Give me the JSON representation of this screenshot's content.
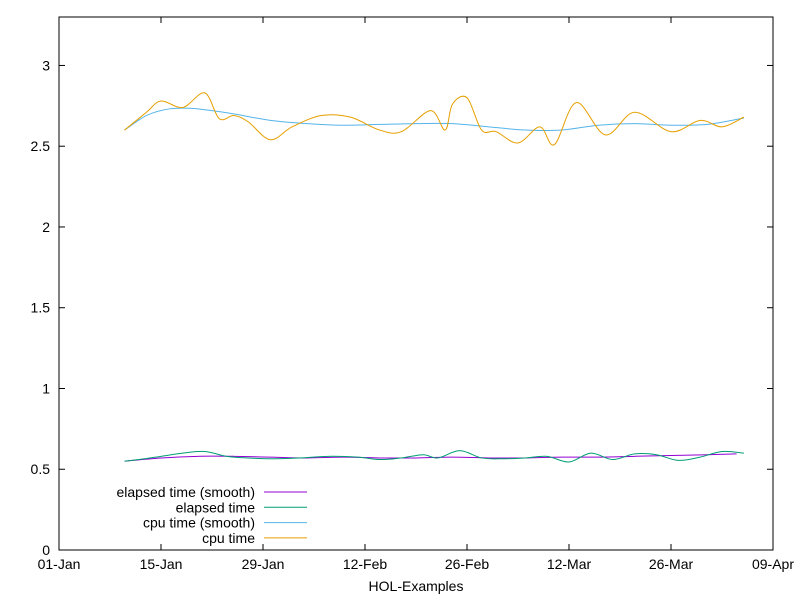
{
  "chart_data": {
    "type": "line",
    "title": "",
    "xlabel": "HOL-Examples",
    "ylabel": "",
    "xlim": [
      "2023-01-01",
      "2023-04-09"
    ],
    "ylim": [
      0,
      3.3
    ],
    "x_ticks": [
      "01-Jan",
      "15-Jan",
      "29-Jan",
      "12-Feb",
      "26-Feb",
      "12-Mar",
      "26-Mar",
      "09-Apr"
    ],
    "y_ticks": [
      "0",
      "0.5",
      "1",
      "1.5",
      "2",
      "2.5",
      "3"
    ],
    "y_tick_values": [
      0,
      0.5,
      1,
      1.5,
      2,
      2.5,
      3
    ],
    "grid": false,
    "legend_position": "bottom-left",
    "series": [
      {
        "name": "elapsed time (smooth)",
        "color": "#9400d3",
        "x": [
          "2023-01-10",
          "2023-01-15",
          "2023-01-20",
          "2023-01-25",
          "2023-01-30",
          "2023-02-04",
          "2023-02-09",
          "2023-02-14",
          "2023-02-19",
          "2023-02-24",
          "2023-03-01",
          "2023-03-06",
          "2023-03-11",
          "2023-03-16",
          "2023-03-21",
          "2023-03-26",
          "2023-03-31",
          "2023-04-04"
        ],
        "values": [
          0.55,
          0.57,
          0.58,
          0.58,
          0.575,
          0.57,
          0.575,
          0.57,
          0.57,
          0.575,
          0.57,
          0.57,
          0.575,
          0.575,
          0.58,
          0.585,
          0.59,
          0.595
        ]
      },
      {
        "name": "elapsed time",
        "color": "#009e73",
        "x": [
          "2023-01-10",
          "2023-01-12",
          "2023-01-15",
          "2023-01-18",
          "2023-01-21",
          "2023-01-24",
          "2023-01-27",
          "2023-01-30",
          "2023-02-03",
          "2023-02-07",
          "2023-02-11",
          "2023-02-14",
          "2023-02-17",
          "2023-02-20",
          "2023-02-22",
          "2023-02-25",
          "2023-02-28",
          "2023-03-03",
          "2023-03-06",
          "2023-03-09",
          "2023-03-12",
          "2023-03-15",
          "2023-03-18",
          "2023-03-21",
          "2023-03-24",
          "2023-03-27",
          "2023-03-30",
          "2023-04-02",
          "2023-04-05"
        ],
        "values": [
          0.55,
          0.56,
          0.58,
          0.6,
          0.61,
          0.58,
          0.57,
          0.565,
          0.57,
          0.58,
          0.575,
          0.56,
          0.57,
          0.59,
          0.57,
          0.615,
          0.57,
          0.565,
          0.57,
          0.58,
          0.545,
          0.6,
          0.56,
          0.595,
          0.59,
          0.555,
          0.575,
          0.61,
          0.6
        ]
      },
      {
        "name": "cpu time (smooth)",
        "color": "#56b4e9",
        "x": [
          "2023-01-10",
          "2023-01-13",
          "2023-01-16",
          "2023-01-19",
          "2023-01-22",
          "2023-01-25",
          "2023-01-30",
          "2023-02-04",
          "2023-02-09",
          "2023-02-14",
          "2023-02-19",
          "2023-02-24",
          "2023-03-01",
          "2023-03-06",
          "2023-03-11",
          "2023-03-16",
          "2023-03-21",
          "2023-03-26",
          "2023-03-31",
          "2023-04-05"
        ],
        "values": [
          2.6,
          2.69,
          2.73,
          2.735,
          2.72,
          2.7,
          2.66,
          2.64,
          2.63,
          2.635,
          2.64,
          2.64,
          2.62,
          2.6,
          2.6,
          2.63,
          2.64,
          2.63,
          2.635,
          2.675
        ]
      },
      {
        "name": "cpu time",
        "color": "#e69f00",
        "x": [
          "2023-01-10",
          "2023-01-13",
          "2023-01-15",
          "2023-01-18",
          "2023-01-21",
          "2023-01-23",
          "2023-01-25",
          "2023-01-27",
          "2023-01-30",
          "2023-02-02",
          "2023-02-06",
          "2023-02-10",
          "2023-02-14",
          "2023-02-17",
          "2023-02-21",
          "2023-02-23",
          "2023-02-24",
          "2023-02-26",
          "2023-02-28",
          "2023-03-02",
          "2023-03-05",
          "2023-03-08",
          "2023-03-10",
          "2023-03-13",
          "2023-03-17",
          "2023-03-21",
          "2023-03-26",
          "2023-03-30",
          "2023-04-02",
          "2023-04-05"
        ],
        "values": [
          2.6,
          2.71,
          2.78,
          2.74,
          2.83,
          2.67,
          2.69,
          2.65,
          2.54,
          2.62,
          2.69,
          2.68,
          2.6,
          2.59,
          2.72,
          2.6,
          2.76,
          2.8,
          2.6,
          2.59,
          2.52,
          2.62,
          2.51,
          2.77,
          2.57,
          2.71,
          2.59,
          2.66,
          2.62,
          2.68
        ]
      }
    ]
  }
}
